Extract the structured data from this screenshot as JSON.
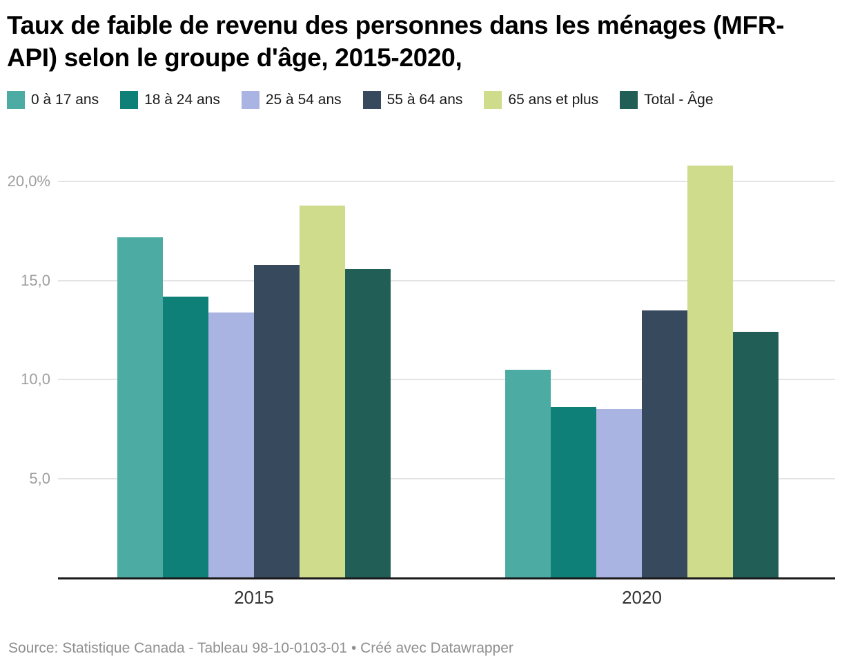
{
  "header": {
    "title": "Taux de faible de revenu des personnes dans les ménages (MFR-API) selon le groupe d'âge, 2015-2020,"
  },
  "chart_data": {
    "type": "bar",
    "title": "Taux de faible de revenu des personnes dans les ménages (MFR-API) selon le groupe d'âge, 2015-2020,",
    "categories": [
      "2015",
      "2020"
    ],
    "series": [
      {
        "name": "0 à 17 ans",
        "color": "#4CABA3",
        "values": [
          17.2,
          10.5
        ]
      },
      {
        "name": "18 à 24 ans",
        "color": "#0E8077",
        "values": [
          14.2,
          8.6
        ]
      },
      {
        "name": "25 à 54 ans",
        "color": "#AAB4E2",
        "values": [
          13.4,
          8.5
        ]
      },
      {
        "name": "55 à 64 ans",
        "color": "#36495D",
        "values": [
          15.8,
          13.5
        ]
      },
      {
        "name": "65 ans et plus",
        "color": "#CEDC8C",
        "values": [
          18.8,
          20.8
        ]
      },
      {
        "name": "Total - Âge",
        "color": "#215F56",
        "values": [
          15.6,
          12.4
        ]
      }
    ],
    "y_ticks": [
      {
        "value": 5,
        "label": "5,0"
      },
      {
        "value": 10,
        "label": "10,0"
      },
      {
        "value": 15,
        "label": "15,0"
      },
      {
        "value": 20,
        "label": "20,0%"
      }
    ],
    "ylim": [
      0,
      21.2
    ],
    "grid": true,
    "legend_position": "top",
    "xlabel": "",
    "ylabel": ""
  },
  "footer": {
    "text": "Source: Statistique Canada - Tableau 98-10-0103-01 • Créé avec Datawrapper"
  }
}
